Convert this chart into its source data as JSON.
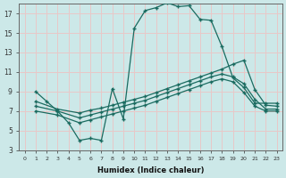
{
  "xlabel": "Humidex (Indice chaleur)",
  "bg_color": "#cce8e8",
  "grid_color": "#e8c8c8",
  "line_color": "#1a6b60",
  "xlim": [
    -0.5,
    23.5
  ],
  "ylim": [
    3,
    18
  ],
  "yticks": [
    3,
    5,
    7,
    9,
    11,
    13,
    15,
    17
  ],
  "xticks": [
    0,
    1,
    2,
    3,
    4,
    5,
    6,
    7,
    8,
    9,
    10,
    11,
    12,
    13,
    14,
    15,
    16,
    17,
    18,
    19,
    20,
    21,
    22,
    23
  ],
  "line1_x": [
    1,
    2,
    3,
    4,
    5,
    6,
    7,
    8,
    9,
    10,
    11,
    12,
    13,
    14,
    15,
    16,
    17,
    18,
    19,
    20,
    21,
    22,
    23
  ],
  "line1_y": [
    9.0,
    8.0,
    7.0,
    5.8,
    4.0,
    4.2,
    4.0,
    9.3,
    6.2,
    15.5,
    17.3,
    17.6,
    18.1,
    17.7,
    17.8,
    16.4,
    16.3,
    13.6,
    10.4,
    9.4,
    7.8,
    7.8,
    7.8
  ],
  "line2_x": [
    1,
    3,
    5,
    6,
    7,
    8,
    9,
    10,
    11,
    12,
    13,
    14,
    15,
    16,
    17,
    18,
    19,
    20,
    21,
    22,
    23
  ],
  "line2_y": [
    8.0,
    7.2,
    6.8,
    7.1,
    7.3,
    7.6,
    7.9,
    8.2,
    8.5,
    8.9,
    9.3,
    9.7,
    10.1,
    10.5,
    10.9,
    11.3,
    11.8,
    12.2,
    9.2,
    7.6,
    7.5
  ],
  "line3_x": [
    1,
    3,
    5,
    6,
    7,
    8,
    9,
    10,
    11,
    12,
    13,
    14,
    15,
    16,
    17,
    18,
    19,
    20,
    21,
    22,
    23
  ],
  "line3_y": [
    7.5,
    7.0,
    6.3,
    6.6,
    6.9,
    7.2,
    7.5,
    7.8,
    8.1,
    8.5,
    8.9,
    9.3,
    9.7,
    10.1,
    10.5,
    10.8,
    10.5,
    9.8,
    8.2,
    7.2,
    7.2
  ],
  "line4_x": [
    1,
    3,
    5,
    6,
    7,
    8,
    9,
    10,
    11,
    12,
    13,
    14,
    15,
    16,
    17,
    18,
    19,
    20,
    21,
    22,
    23
  ],
  "line4_y": [
    7.0,
    6.6,
    5.8,
    6.1,
    6.4,
    6.7,
    7.0,
    7.3,
    7.6,
    8.0,
    8.4,
    8.8,
    9.2,
    9.6,
    10.0,
    10.3,
    10.0,
    8.9,
    7.5,
    7.0,
    7.0
  ]
}
